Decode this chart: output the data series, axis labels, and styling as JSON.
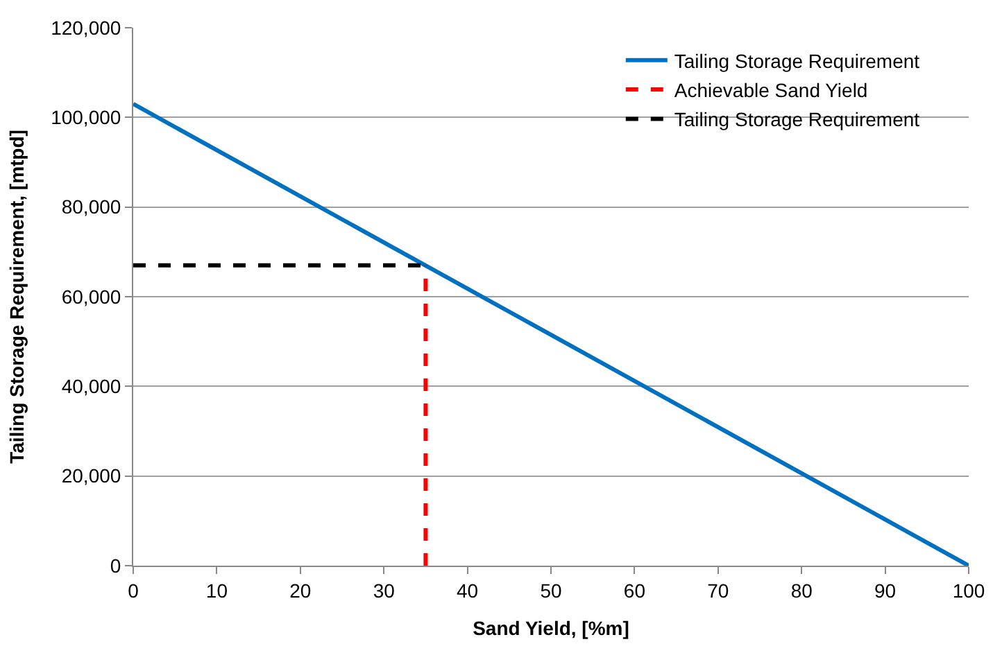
{
  "chart_data": {
    "type": "line",
    "xlabel": "Sand Yield, [%m]",
    "ylabel": "Tailing Storage Requirement, [mtpd]",
    "series": [
      {
        "name": "Tailing Storage Requirement",
        "color": "#0070c0",
        "x": [
          0,
          100
        ],
        "values": [
          103000,
          0
        ],
        "line_style": "solid"
      },
      {
        "name": "Achievable Sand Yield",
        "color": "#ff0000",
        "x": [
          35,
          35
        ],
        "values": [
          0,
          67000
        ],
        "line_style": "dashed"
      },
      {
        "name": "Tailing Storage Requirement",
        "color": "#000000",
        "x": [
          0,
          35
        ],
        "values": [
          67000,
          67000
        ],
        "line_style": "dashed"
      }
    ],
    "xlim": [
      0,
      100
    ],
    "xticks": [
      0,
      10,
      20,
      30,
      40,
      50,
      60,
      70,
      80,
      90,
      100
    ],
    "ylim": [
      0,
      120000
    ],
    "yticks": [
      {
        "value": 0,
        "label": "0"
      },
      {
        "value": 20000,
        "label": "20,000"
      },
      {
        "value": 40000,
        "label": "40,000"
      },
      {
        "value": 60000,
        "label": "60,000"
      },
      {
        "value": 80000,
        "label": "80,000"
      },
      {
        "value": 100000,
        "label": "100,000"
      },
      {
        "value": 120000,
        "label": "120,000"
      }
    ],
    "grid": "y",
    "legend": "top right",
    "marker": "none"
  }
}
